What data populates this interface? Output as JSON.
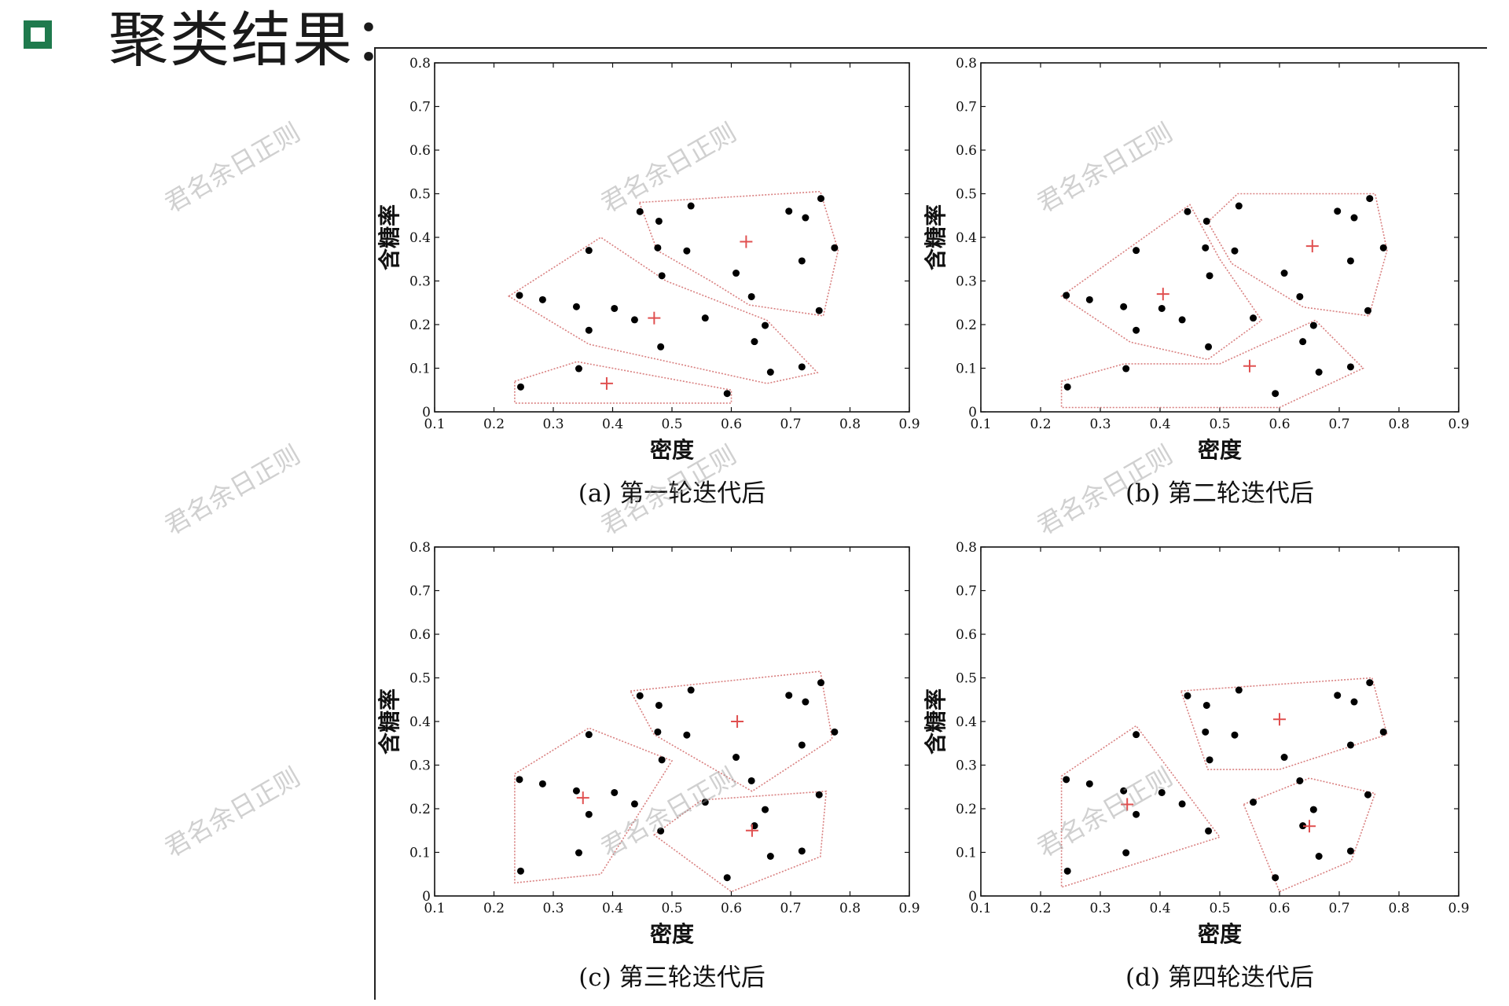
{
  "header": {
    "title": "聚类结果：",
    "bullet_icon": "square-bullet-icon",
    "bullet_color": "#1f7a4d"
  },
  "watermark": "君名余日正则",
  "colors": {
    "point": "#000000",
    "centroid": "#e05050",
    "hull": "#d98080"
  },
  "chart_data": [
    {
      "type": "scatter",
      "caption": "(a) 第一轮迭代后",
      "xlabel": "密度",
      "ylabel": "含糖率",
      "xlim": [
        0.1,
        0.9
      ],
      "ylim": [
        0,
        0.8
      ],
      "xticks": [
        "0.1",
        "0.2",
        "0.3",
        "0.4",
        "0.5",
        "0.6",
        "0.7",
        "0.8",
        "0.9"
      ],
      "yticks": [
        "0",
        "0.1",
        "0.2",
        "0.3",
        "0.4",
        "0.5",
        "0.6",
        "0.7",
        "0.8"
      ],
      "points": [
        [
          0.245,
          0.057
        ],
        [
          0.343,
          0.099
        ],
        [
          0.593,
          0.042
        ],
        [
          0.243,
          0.267
        ],
        [
          0.282,
          0.257
        ],
        [
          0.339,
          0.241
        ],
        [
          0.36,
          0.37
        ],
        [
          0.36,
          0.187
        ],
        [
          0.403,
          0.237
        ],
        [
          0.437,
          0.211
        ],
        [
          0.481,
          0.149
        ],
        [
          0.483,
          0.312
        ],
        [
          0.556,
          0.215
        ],
        [
          0.639,
          0.161
        ],
        [
          0.657,
          0.198
        ],
        [
          0.666,
          0.091
        ],
        [
          0.719,
          0.103
        ],
        [
          0.446,
          0.459
        ],
        [
          0.478,
          0.437
        ],
        [
          0.525,
          0.369
        ],
        [
          0.532,
          0.472
        ],
        [
          0.608,
          0.318
        ],
        [
          0.634,
          0.264
        ],
        [
          0.697,
          0.46
        ],
        [
          0.719,
          0.346
        ],
        [
          0.725,
          0.445
        ],
        [
          0.748,
          0.232
        ],
        [
          0.751,
          0.489
        ],
        [
          0.774,
          0.376
        ],
        [
          0.476,
          0.376
        ]
      ],
      "centroids": [
        [
          0.625,
          0.39
        ],
        [
          0.47,
          0.215
        ],
        [
          0.39,
          0.065
        ]
      ],
      "hulls": [
        [
          [
            0.445,
            0.48
          ],
          [
            0.75,
            0.505
          ],
          [
            0.78,
            0.37
          ],
          [
            0.755,
            0.22
          ],
          [
            0.63,
            0.245
          ],
          [
            0.565,
            0.3
          ],
          [
            0.475,
            0.37
          ]
        ],
        [
          [
            0.225,
            0.265
          ],
          [
            0.38,
            0.4
          ],
          [
            0.49,
            0.3
          ],
          [
            0.66,
            0.21
          ],
          [
            0.745,
            0.09
          ],
          [
            0.66,
            0.065
          ],
          [
            0.36,
            0.155
          ]
        ],
        [
          [
            0.235,
            0.07
          ],
          [
            0.34,
            0.115
          ],
          [
            0.6,
            0.05
          ],
          [
            0.6,
            0.02
          ],
          [
            0.235,
            0.02
          ]
        ]
      ]
    },
    {
      "type": "scatter",
      "caption": "(b) 第二轮迭代后",
      "xlabel": "密度",
      "ylabel": "含糖率",
      "xlim": [
        0.1,
        0.9
      ],
      "ylim": [
        0,
        0.8
      ],
      "xticks": [
        "0.1",
        "0.2",
        "0.3",
        "0.4",
        "0.5",
        "0.6",
        "0.7",
        "0.8",
        "0.9"
      ],
      "yticks": [
        "0",
        "0.1",
        "0.2",
        "0.3",
        "0.4",
        "0.5",
        "0.6",
        "0.7",
        "0.8"
      ],
      "points": [
        [
          0.245,
          0.057
        ],
        [
          0.343,
          0.099
        ],
        [
          0.593,
          0.042
        ],
        [
          0.243,
          0.267
        ],
        [
          0.282,
          0.257
        ],
        [
          0.339,
          0.241
        ],
        [
          0.36,
          0.37
        ],
        [
          0.36,
          0.187
        ],
        [
          0.403,
          0.237
        ],
        [
          0.437,
          0.211
        ],
        [
          0.481,
          0.149
        ],
        [
          0.483,
          0.312
        ],
        [
          0.556,
          0.215
        ],
        [
          0.639,
          0.161
        ],
        [
          0.657,
          0.198
        ],
        [
          0.666,
          0.091
        ],
        [
          0.719,
          0.103
        ],
        [
          0.446,
          0.459
        ],
        [
          0.478,
          0.437
        ],
        [
          0.525,
          0.369
        ],
        [
          0.532,
          0.472
        ],
        [
          0.608,
          0.318
        ],
        [
          0.634,
          0.264
        ],
        [
          0.697,
          0.46
        ],
        [
          0.719,
          0.346
        ],
        [
          0.725,
          0.445
        ],
        [
          0.748,
          0.232
        ],
        [
          0.751,
          0.489
        ],
        [
          0.774,
          0.376
        ],
        [
          0.476,
          0.376
        ]
      ],
      "centroids": [
        [
          0.655,
          0.38
        ],
        [
          0.405,
          0.27
        ],
        [
          0.55,
          0.105
        ]
      ],
      "hulls": [
        [
          [
            0.48,
            0.435
          ],
          [
            0.53,
            0.5
          ],
          [
            0.76,
            0.5
          ],
          [
            0.78,
            0.37
          ],
          [
            0.75,
            0.22
          ],
          [
            0.64,
            0.24
          ],
          [
            0.52,
            0.34
          ]
        ],
        [
          [
            0.235,
            0.265
          ],
          [
            0.45,
            0.475
          ],
          [
            0.5,
            0.35
          ],
          [
            0.57,
            0.21
          ],
          [
            0.48,
            0.12
          ],
          [
            0.35,
            0.16
          ]
        ],
        [
          [
            0.235,
            0.07
          ],
          [
            0.34,
            0.11
          ],
          [
            0.5,
            0.11
          ],
          [
            0.66,
            0.21
          ],
          [
            0.74,
            0.1
          ],
          [
            0.6,
            0.01
          ],
          [
            0.235,
            0.01
          ]
        ]
      ]
    },
    {
      "type": "scatter",
      "caption": "(c) 第三轮迭代后",
      "xlabel": "密度",
      "ylabel": "含糖率",
      "xlim": [
        0.1,
        0.9
      ],
      "ylim": [
        0,
        0.8
      ],
      "xticks": [
        "0.1",
        "0.2",
        "0.3",
        "0.4",
        "0.5",
        "0.6",
        "0.7",
        "0.8",
        "0.9"
      ],
      "yticks": [
        "0",
        "0.1",
        "0.2",
        "0.3",
        "0.4",
        "0.5",
        "0.6",
        "0.7",
        "0.8"
      ],
      "points": [
        [
          0.245,
          0.057
        ],
        [
          0.343,
          0.099
        ],
        [
          0.593,
          0.042
        ],
        [
          0.243,
          0.267
        ],
        [
          0.282,
          0.257
        ],
        [
          0.339,
          0.241
        ],
        [
          0.36,
          0.37
        ],
        [
          0.36,
          0.187
        ],
        [
          0.403,
          0.237
        ],
        [
          0.437,
          0.211
        ],
        [
          0.481,
          0.149
        ],
        [
          0.483,
          0.312
        ],
        [
          0.556,
          0.215
        ],
        [
          0.639,
          0.161
        ],
        [
          0.657,
          0.198
        ],
        [
          0.666,
          0.091
        ],
        [
          0.719,
          0.103
        ],
        [
          0.446,
          0.459
        ],
        [
          0.478,
          0.437
        ],
        [
          0.525,
          0.369
        ],
        [
          0.532,
          0.472
        ],
        [
          0.608,
          0.318
        ],
        [
          0.634,
          0.264
        ],
        [
          0.697,
          0.46
        ],
        [
          0.719,
          0.346
        ],
        [
          0.725,
          0.445
        ],
        [
          0.748,
          0.232
        ],
        [
          0.751,
          0.489
        ],
        [
          0.774,
          0.376
        ],
        [
          0.476,
          0.376
        ]
      ],
      "centroids": [
        [
          0.61,
          0.4
        ],
        [
          0.35,
          0.225
        ],
        [
          0.635,
          0.15
        ]
      ],
      "hulls": [
        [
          [
            0.43,
            0.47
          ],
          [
            0.75,
            0.515
          ],
          [
            0.77,
            0.36
          ],
          [
            0.635,
            0.24
          ],
          [
            0.47,
            0.37
          ]
        ],
        [
          [
            0.235,
            0.28
          ],
          [
            0.36,
            0.385
          ],
          [
            0.5,
            0.31
          ],
          [
            0.38,
            0.05
          ],
          [
            0.235,
            0.03
          ]
        ],
        [
          [
            0.47,
            0.14
          ],
          [
            0.55,
            0.22
          ],
          [
            0.76,
            0.24
          ],
          [
            0.75,
            0.09
          ],
          [
            0.6,
            0.01
          ]
        ]
      ]
    },
    {
      "type": "scatter",
      "caption": "(d) 第四轮迭代后",
      "xlabel": "密度",
      "ylabel": "含糖率",
      "xlim": [
        0.1,
        0.9
      ],
      "ylim": [
        0,
        0.8
      ],
      "xticks": [
        "0.1",
        "0.2",
        "0.3",
        "0.4",
        "0.5",
        "0.6",
        "0.7",
        "0.8",
        "0.9"
      ],
      "yticks": [
        "0",
        "0.1",
        "0.2",
        "0.3",
        "0.4",
        "0.5",
        "0.6",
        "0.7",
        "0.8"
      ],
      "points": [
        [
          0.245,
          0.057
        ],
        [
          0.343,
          0.099
        ],
        [
          0.593,
          0.042
        ],
        [
          0.243,
          0.267
        ],
        [
          0.282,
          0.257
        ],
        [
          0.339,
          0.241
        ],
        [
          0.36,
          0.37
        ],
        [
          0.36,
          0.187
        ],
        [
          0.403,
          0.237
        ],
        [
          0.437,
          0.211
        ],
        [
          0.481,
          0.149
        ],
        [
          0.483,
          0.312
        ],
        [
          0.556,
          0.215
        ],
        [
          0.639,
          0.161
        ],
        [
          0.657,
          0.198
        ],
        [
          0.666,
          0.091
        ],
        [
          0.719,
          0.103
        ],
        [
          0.446,
          0.459
        ],
        [
          0.478,
          0.437
        ],
        [
          0.525,
          0.369
        ],
        [
          0.532,
          0.472
        ],
        [
          0.608,
          0.318
        ],
        [
          0.634,
          0.264
        ],
        [
          0.697,
          0.46
        ],
        [
          0.719,
          0.346
        ],
        [
          0.725,
          0.445
        ],
        [
          0.748,
          0.232
        ],
        [
          0.751,
          0.489
        ],
        [
          0.774,
          0.376
        ],
        [
          0.476,
          0.376
        ]
      ],
      "centroids": [
        [
          0.6,
          0.405
        ],
        [
          0.345,
          0.21
        ],
        [
          0.65,
          0.16
        ]
      ],
      "hulls": [
        [
          [
            0.435,
            0.47
          ],
          [
            0.755,
            0.5
          ],
          [
            0.78,
            0.37
          ],
          [
            0.6,
            0.29
          ],
          [
            0.48,
            0.29
          ]
        ],
        [
          [
            0.235,
            0.275
          ],
          [
            0.36,
            0.39
          ],
          [
            0.5,
            0.135
          ],
          [
            0.235,
            0.02
          ]
        ],
        [
          [
            0.54,
            0.21
          ],
          [
            0.65,
            0.27
          ],
          [
            0.76,
            0.235
          ],
          [
            0.72,
            0.08
          ],
          [
            0.6,
            0.01
          ]
        ]
      ]
    }
  ]
}
